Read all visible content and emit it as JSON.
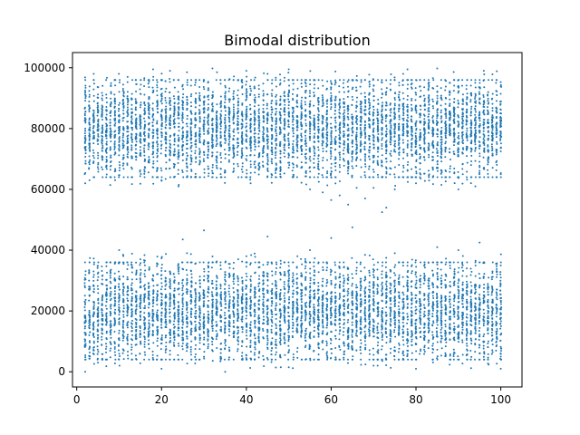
{
  "chart_data": {
    "type": "scatter",
    "title": "Bimodal distribution",
    "xlabel": "",
    "ylabel": "",
    "xlim": [
      -1.0,
      105.0
    ],
    "ylim": [
      -5000,
      105000
    ],
    "grid": false,
    "legend": false,
    "xticks": [
      0,
      20,
      40,
      60,
      80,
      100
    ],
    "xtick_labels": [
      "0",
      "20",
      "40",
      "60",
      "80",
      "100"
    ],
    "yticks": [
      0,
      20000,
      40000,
      60000,
      80000,
      100000
    ],
    "ytick_labels": [
      "0",
      "20000",
      "40000",
      "60000",
      "80000",
      "100000"
    ],
    "series": [
      {
        "color": "#1f77b4",
        "x": [
          2,
          2,
          2,
          3,
          4,
          5,
          7,
          12,
          18,
          20,
          22,
          24,
          26,
          29,
          32,
          35,
          40,
          41,
          45,
          48,
          50,
          55,
          58,
          60,
          62,
          64,
          66,
          68,
          70,
          72,
          73,
          75,
          78,
          80,
          85,
          88,
          90,
          94,
          96,
          100,
          2,
          5,
          10,
          15,
          20,
          25,
          30,
          35,
          40,
          45,
          50,
          55,
          60,
          65,
          70,
          75,
          80,
          85,
          90,
          95,
          100,
          100,
          100
        ],
        "y": [
          62000,
          80000,
          92000,
          63000,
          98000,
          72000,
          69000,
          97000,
          99500,
          63000,
          99000,
          61000,
          98500,
          64000,
          99800,
          66000,
          99000,
          62000,
          98000,
          65000,
          99500,
          60000,
          59000,
          56500,
          58000,
          55000,
          60500,
          57000,
          60500,
          52500,
          54000,
          60000,
          99500,
          62000,
          99800,
          64000,
          60000,
          61000,
          99000,
          65000,
          0,
          3000,
          40000,
          37000,
          1000,
          43500,
          46500,
          0,
          38000,
          44500,
          1500,
          40000,
          44000,
          47500,
          2000,
          39000,
          1000,
          41000,
          40000,
          42500,
          1000,
          35000,
          5000
        ]
      }
    ],
    "clusters": [
      {
        "x_range": [
          2,
          100
        ],
        "y_range": [
          64000,
          95000
        ],
        "center": 80000
      },
      {
        "x_range": [
          2,
          100
        ],
        "y_range": [
          5000,
          35000
        ],
        "center": 20000
      }
    ]
  }
}
